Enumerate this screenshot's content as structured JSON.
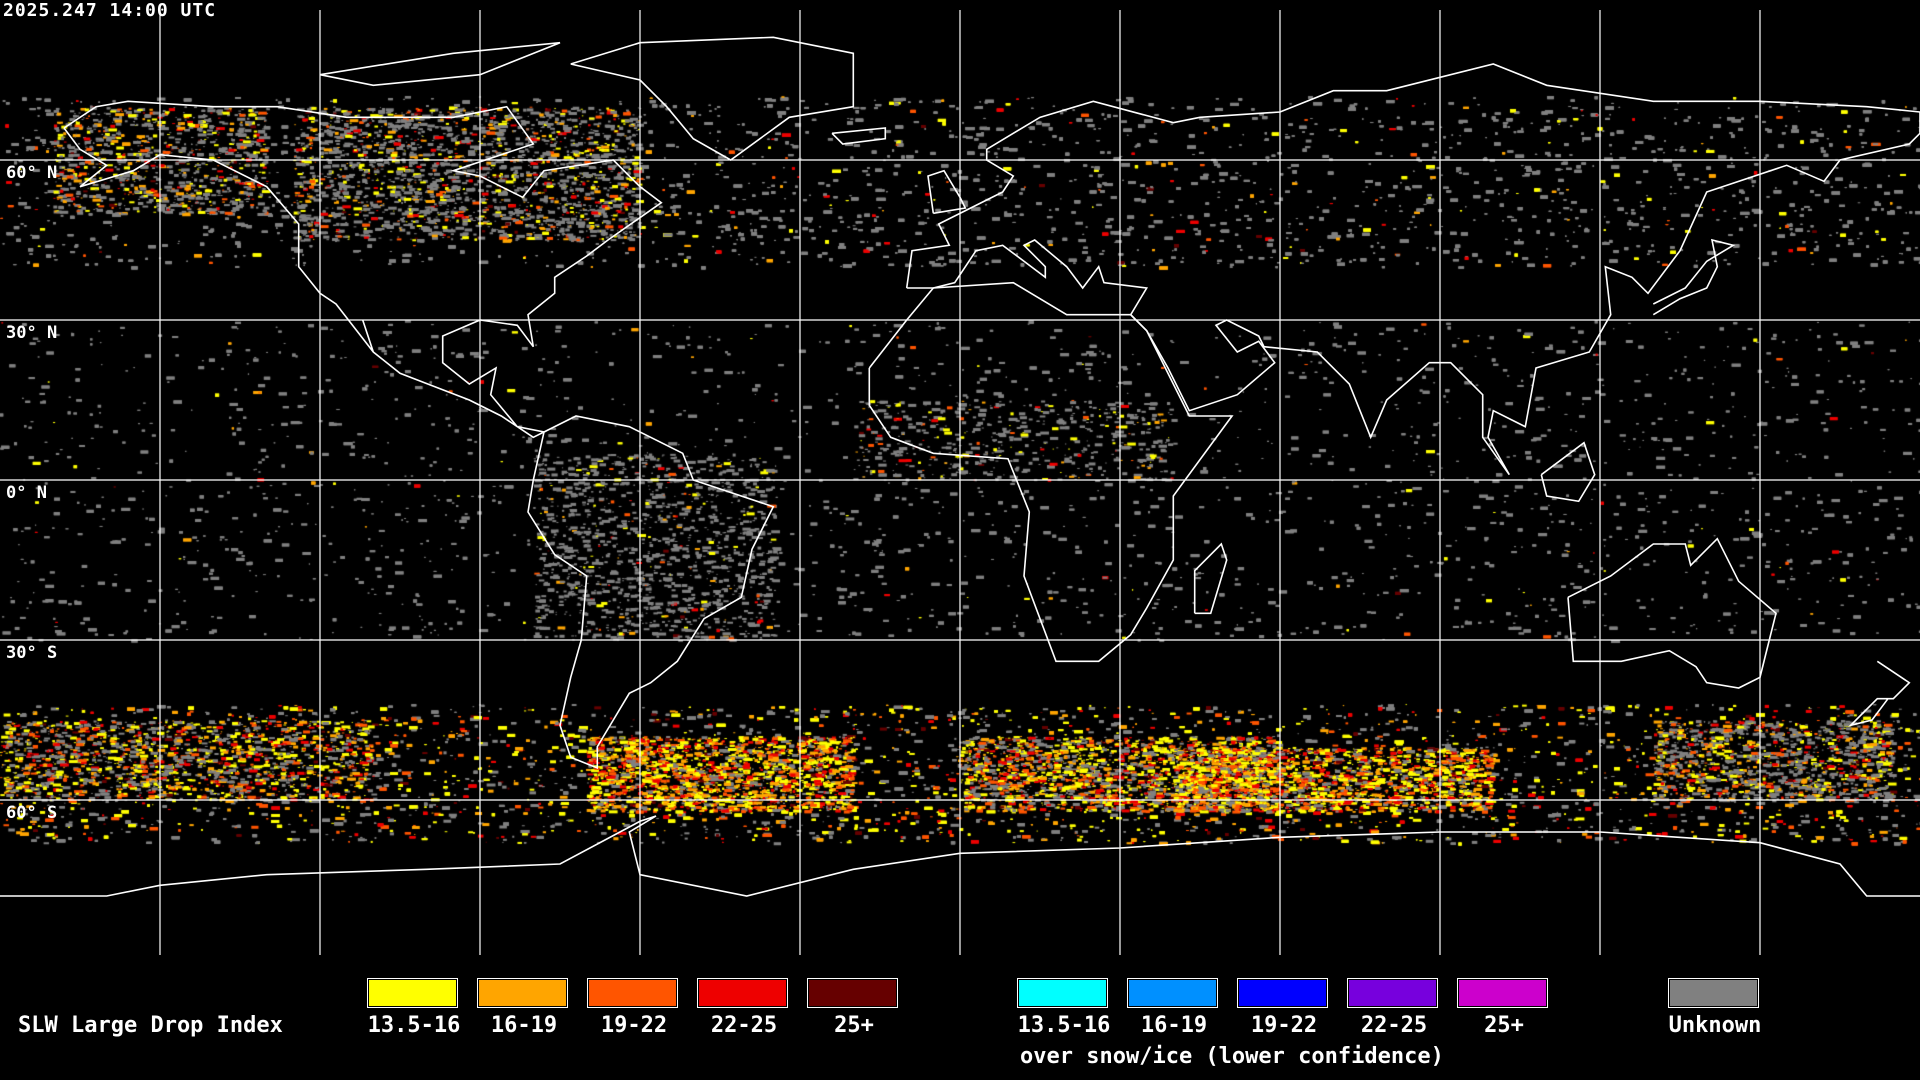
{
  "header": {
    "timestamp": "2025.247 14:00 UTC"
  },
  "map": {
    "projection": "equirectangular",
    "lon_range": [
      -180,
      180
    ],
    "lat_range": [
      -90,
      90
    ],
    "grid_spacing_deg": 30,
    "lat_labels": [
      "60° N",
      "30° N",
      "0° N",
      "30° S",
      "60° S"
    ],
    "coastline_color": "#ffffff",
    "grid_color": "#ffffff"
  },
  "legend": {
    "title": "SLW Large Drop Index",
    "classes": [
      {
        "label": "13.5-16",
        "color": "#ffff00"
      },
      {
        "label": "16-19",
        "color": "#ffa500"
      },
      {
        "label": "19-22",
        "color": "#ff5500"
      },
      {
        "label": "22-25",
        "color": "#ee0000"
      },
      {
        "label": "25+",
        "color": "#660000"
      }
    ],
    "snow_classes": [
      {
        "label": "13.5-16",
        "color": "#00ffff"
      },
      {
        "label": "16-19",
        "color": "#0090ff"
      },
      {
        "label": "19-22",
        "color": "#0000ff"
      },
      {
        "label": "22-25",
        "color": "#7700dd"
      },
      {
        "label": "25+",
        "color": "#cc00cc"
      }
    ],
    "snow_caption": "over snow/ice (lower confidence)",
    "unknown": {
      "label": "Unknown",
      "color": "#808080"
    }
  }
}
